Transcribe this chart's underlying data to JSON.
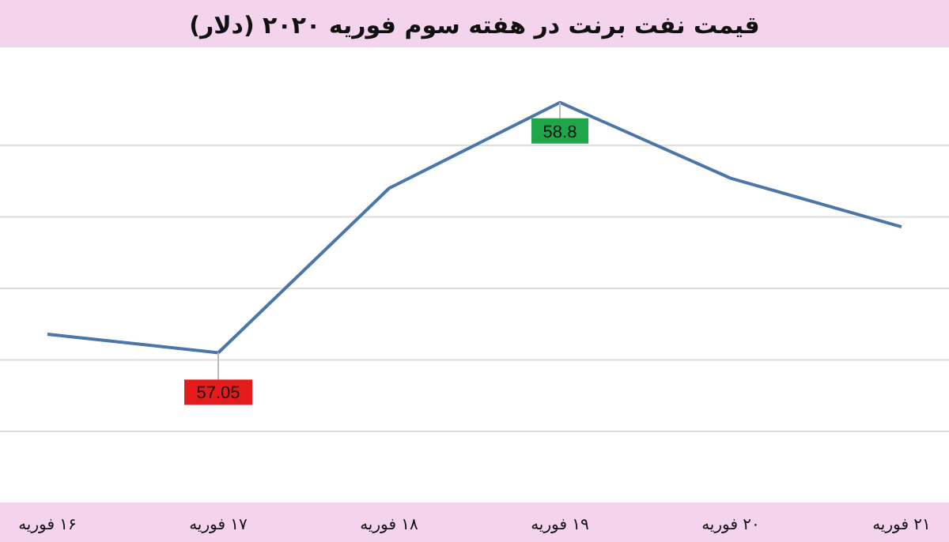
{
  "chart_data": {
    "type": "line",
    "title": "قیمت نفت برنت در هفته سوم فوریه ۲۰۲۰ (دلار)",
    "categories": [
      "۱۶ فوریه",
      "۱۷ فوریه",
      "۱۸ فوریه",
      "۱۹ فوریه",
      "۲۰ فوریه",
      "۲۱ فوریه"
    ],
    "series": [
      {
        "color": "#4a76a8",
        "values": [
          57.18,
          57.05,
          58.2,
          58.8,
          58.27,
          57.93
        ],
        "value_labels": [
          null,
          "57.05",
          null,
          "58.8",
          null,
          null
        ]
      }
    ],
    "yticks": [
      {
        "value": 56.5,
        "label": null
      },
      {
        "value": 57,
        "label": null
      },
      {
        "value": 57.5,
        "label": null
      },
      {
        "value": 58,
        "label": null
      },
      {
        "value": 58.5,
        "label": null
      }
    ],
    "grid": "y",
    "tick_labels": "x",
    "marker": "none",
    "line_style": "solid"
  }
}
